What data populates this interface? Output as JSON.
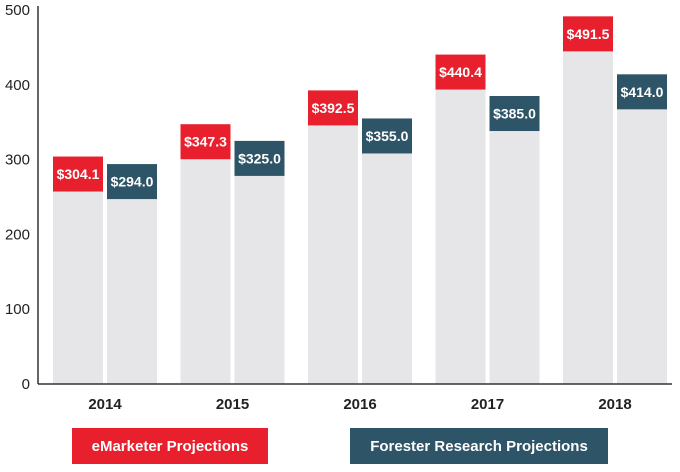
{
  "chart_data": {
    "type": "bar",
    "title": "",
    "xlabel": "",
    "ylabel": "",
    "ylim": [
      0,
      500
    ],
    "yticks": [
      0,
      100,
      200,
      300,
      400,
      500
    ],
    "categories": [
      "2014",
      "2015",
      "2016",
      "2017",
      "2018"
    ],
    "series": [
      {
        "name": "eMarketer Projections",
        "values": [
          304.1,
          347.3,
          392.5,
          440.4,
          491.5
        ],
        "labels": [
          "$304.1",
          "$347.3",
          "$392.5",
          "$440.4",
          "$491.5"
        ],
        "color": "#e8202e"
      },
      {
        "name": "Forester Research Projections",
        "values": [
          294.0,
          325.0,
          355.0,
          385.0,
          414.0
        ],
        "labels": [
          "$294.0",
          "$325.0",
          "$355.0",
          "$385.0",
          "$414.0"
        ],
        "color": "#2e5467"
      }
    ],
    "bar_color": "#e6e6e8",
    "grid": false,
    "legend_position": "bottom"
  }
}
